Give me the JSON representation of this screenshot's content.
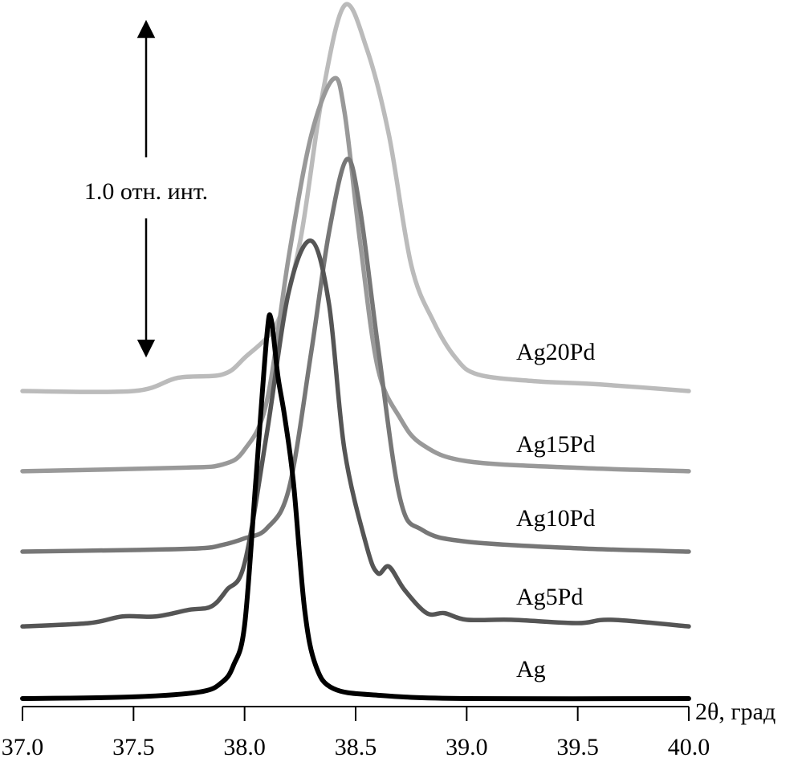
{
  "chart_data": {
    "type": "line",
    "title": "",
    "xlabel": "2θ, град",
    "ylabel": "",
    "xlim": [
      37.0,
      40.0
    ],
    "x_ticks": [
      "37.0",
      "37.5",
      "38.0",
      "38.5",
      "39.0",
      "39.5",
      "40.0"
    ],
    "x_tick_values": [
      37.0,
      37.5,
      38.0,
      38.5,
      39.0,
      39.5,
      40.0
    ],
    "grid": false,
    "scale_bar": {
      "label": "1.0 отн. инт.",
      "value": 1.0
    },
    "series": [
      {
        "name": "Ag",
        "color": "#000000",
        "offset": 0,
        "x": [
          37.0,
          37.5,
          37.8,
          37.9,
          37.95,
          38.0,
          38.05,
          38.1,
          38.12,
          38.15,
          38.18,
          38.22,
          38.27,
          38.32,
          38.4,
          38.6,
          39.0,
          40.0
        ],
        "y": [
          0,
          0.005,
          0.02,
          0.05,
          0.1,
          0.22,
          0.65,
          1.09,
          1.14,
          0.97,
          0.85,
          0.65,
          0.27,
          0.1,
          0.03,
          0.01,
          0,
          0
        ]
      },
      {
        "name": "Ag5Pd",
        "color": "#555555",
        "offset": 0.217,
        "x": [
          37.0,
          37.3,
          37.45,
          37.6,
          37.75,
          37.85,
          37.92,
          38.0,
          38.1,
          38.2,
          38.3,
          38.38,
          38.45,
          38.55,
          38.6,
          38.65,
          38.72,
          38.82,
          38.9,
          39.0,
          39.2,
          39.5,
          39.65,
          40.0
        ],
        "y": [
          0,
          0.01,
          0.03,
          0.03,
          0.05,
          0.06,
          0.11,
          0.19,
          0.58,
          1.01,
          1.16,
          0.97,
          0.53,
          0.24,
          0.16,
          0.18,
          0.11,
          0.04,
          0.04,
          0.02,
          0.02,
          0.01,
          0.02,
          0
        ]
      },
      {
        "name": "Ag10Pd",
        "color": "#777777",
        "offset": 0.442,
        "x": [
          37.0,
          37.5,
          37.8,
          37.9,
          38.0,
          38.1,
          38.2,
          38.3,
          38.38,
          38.46,
          38.52,
          38.6,
          38.7,
          38.8,
          39.0,
          39.5,
          40.0
        ],
        "y": [
          0,
          0.005,
          0.01,
          0.02,
          0.04,
          0.07,
          0.19,
          0.6,
          0.96,
          1.18,
          1.03,
          0.62,
          0.16,
          0.065,
          0.03,
          0.01,
          0
        ]
      },
      {
        "name": "Ag15Pd",
        "color": "#999999",
        "offset": 0.684,
        "x": [
          37.0,
          37.7,
          37.9,
          38.0,
          38.1,
          38.2,
          38.3,
          38.4,
          38.45,
          38.52,
          38.6,
          38.7,
          38.8,
          39.0,
          39.5,
          40.0
        ],
        "y": [
          0,
          0.01,
          0.02,
          0.065,
          0.21,
          0.65,
          1.01,
          1.18,
          1.08,
          0.69,
          0.31,
          0.16,
          0.08,
          0.03,
          0.01,
          0
        ]
      },
      {
        "name": "Ag20Pd",
        "color": "#bbbbbb",
        "offset": 0.925,
        "x": [
          37.0,
          37.5,
          37.7,
          37.9,
          38.0,
          38.15,
          38.25,
          38.35,
          38.45,
          38.55,
          38.65,
          38.75,
          38.85,
          38.95,
          39.05,
          39.3,
          39.6,
          40.0
        ],
        "y": [
          0,
          0,
          0.04,
          0.05,
          0.1,
          0.21,
          0.45,
          0.89,
          1.16,
          1.03,
          0.77,
          0.38,
          0.21,
          0.1,
          0.05,
          0.03,
          0.02,
          0
        ]
      }
    ]
  }
}
